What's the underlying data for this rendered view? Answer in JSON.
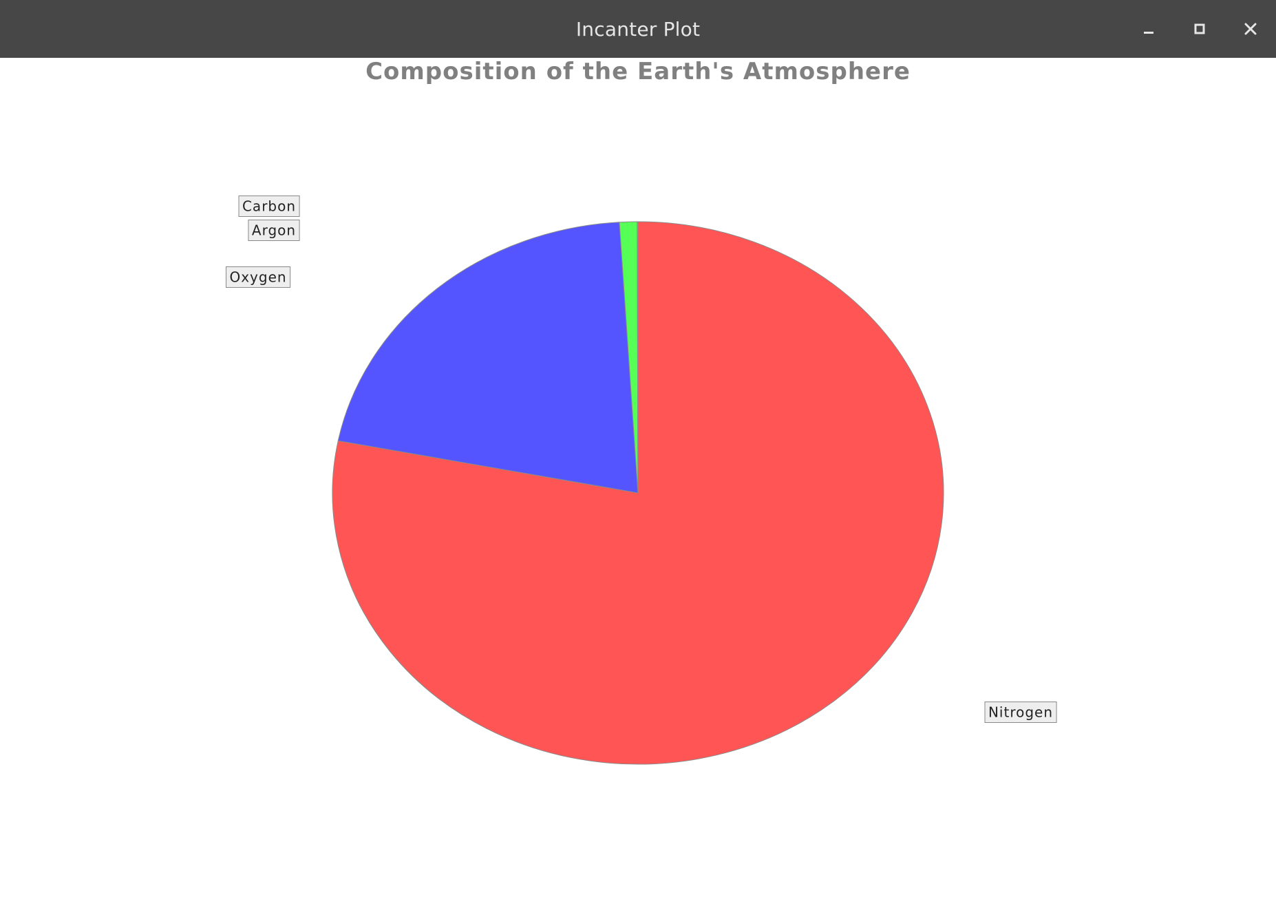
{
  "window": {
    "title": "Incanter Plot",
    "controls": {
      "minimize_icon": "minimize-icon",
      "maximize_icon": "maximize-icon",
      "close_icon": "close-icon"
    }
  },
  "chart_data": {
    "type": "pie",
    "title": "Composition of the Earth's Atmosphere",
    "categories": [
      "Nitrogen",
      "Oxygen",
      "Argon",
      "Carbon"
    ],
    "values": [
      78.08,
      20.95,
      0.93,
      0.04
    ],
    "colors": [
      "#ff5555",
      "#5555ff",
      "#55ff55",
      "#ffff55"
    ],
    "start_angle_deg": 90,
    "direction": "clockwise",
    "label_style": "boxed-outside"
  }
}
